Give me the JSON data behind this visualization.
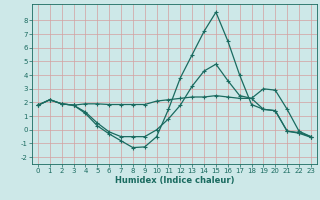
{
  "xlabel": "Humidex (Indice chaleur)",
  "bg_color": "#cde8e8",
  "grid_color": "#d4a0a0",
  "line_color": "#1a6b60",
  "xlim": [
    -0.5,
    23.5
  ],
  "ylim": [
    -2.5,
    9.2
  ],
  "yticks": [
    -2,
    -1,
    0,
    1,
    2,
    3,
    4,
    5,
    6,
    7,
    8
  ],
  "xticks": [
    0,
    1,
    2,
    3,
    4,
    5,
    6,
    7,
    8,
    9,
    10,
    11,
    12,
    13,
    14,
    15,
    16,
    17,
    18,
    19,
    20,
    21,
    22,
    23
  ],
  "line1_x": [
    0,
    1,
    2,
    3,
    4,
    5,
    6,
    7,
    8,
    9,
    10,
    11,
    12,
    13,
    14,
    15,
    16,
    17,
    18,
    19,
    20,
    21,
    22,
    23
  ],
  "line1_y": [
    1.8,
    2.2,
    1.9,
    1.8,
    1.9,
    1.9,
    1.85,
    1.85,
    1.85,
    1.85,
    2.1,
    2.2,
    2.3,
    2.4,
    2.4,
    2.5,
    2.4,
    2.3,
    2.3,
    3.0,
    2.9,
    1.5,
    -0.1,
    -0.5
  ],
  "line2_x": [
    0,
    1,
    2,
    3,
    4,
    5,
    6,
    7,
    8,
    9,
    10,
    11,
    12,
    13,
    14,
    15,
    16,
    17,
    18,
    19,
    20,
    21,
    22,
    23
  ],
  "line2_y": [
    1.8,
    2.2,
    1.9,
    1.8,
    1.3,
    0.5,
    -0.15,
    -0.5,
    -0.5,
    -0.5,
    0.0,
    0.8,
    1.8,
    3.2,
    4.3,
    4.8,
    3.6,
    2.5,
    2.3,
    1.5,
    1.4,
    -0.1,
    -0.2,
    -0.5
  ],
  "line3_x": [
    0,
    1,
    2,
    3,
    4,
    5,
    6,
    7,
    8,
    9,
    10,
    11,
    12,
    13,
    14,
    15,
    16,
    17,
    18,
    19,
    20,
    21,
    22,
    23
  ],
  "line3_y": [
    1.8,
    2.2,
    1.9,
    1.8,
    1.2,
    0.3,
    -0.3,
    -0.8,
    -1.3,
    -1.25,
    -0.5,
    1.5,
    3.8,
    5.5,
    7.2,
    8.6,
    6.5,
    4.0,
    1.85,
    1.5,
    1.4,
    -0.1,
    -0.25,
    -0.55
  ],
  "marker": "+",
  "markersize": 3.5,
  "linewidth": 0.9,
  "tick_fontsize": 5.0,
  "xlabel_fontsize": 6.0
}
